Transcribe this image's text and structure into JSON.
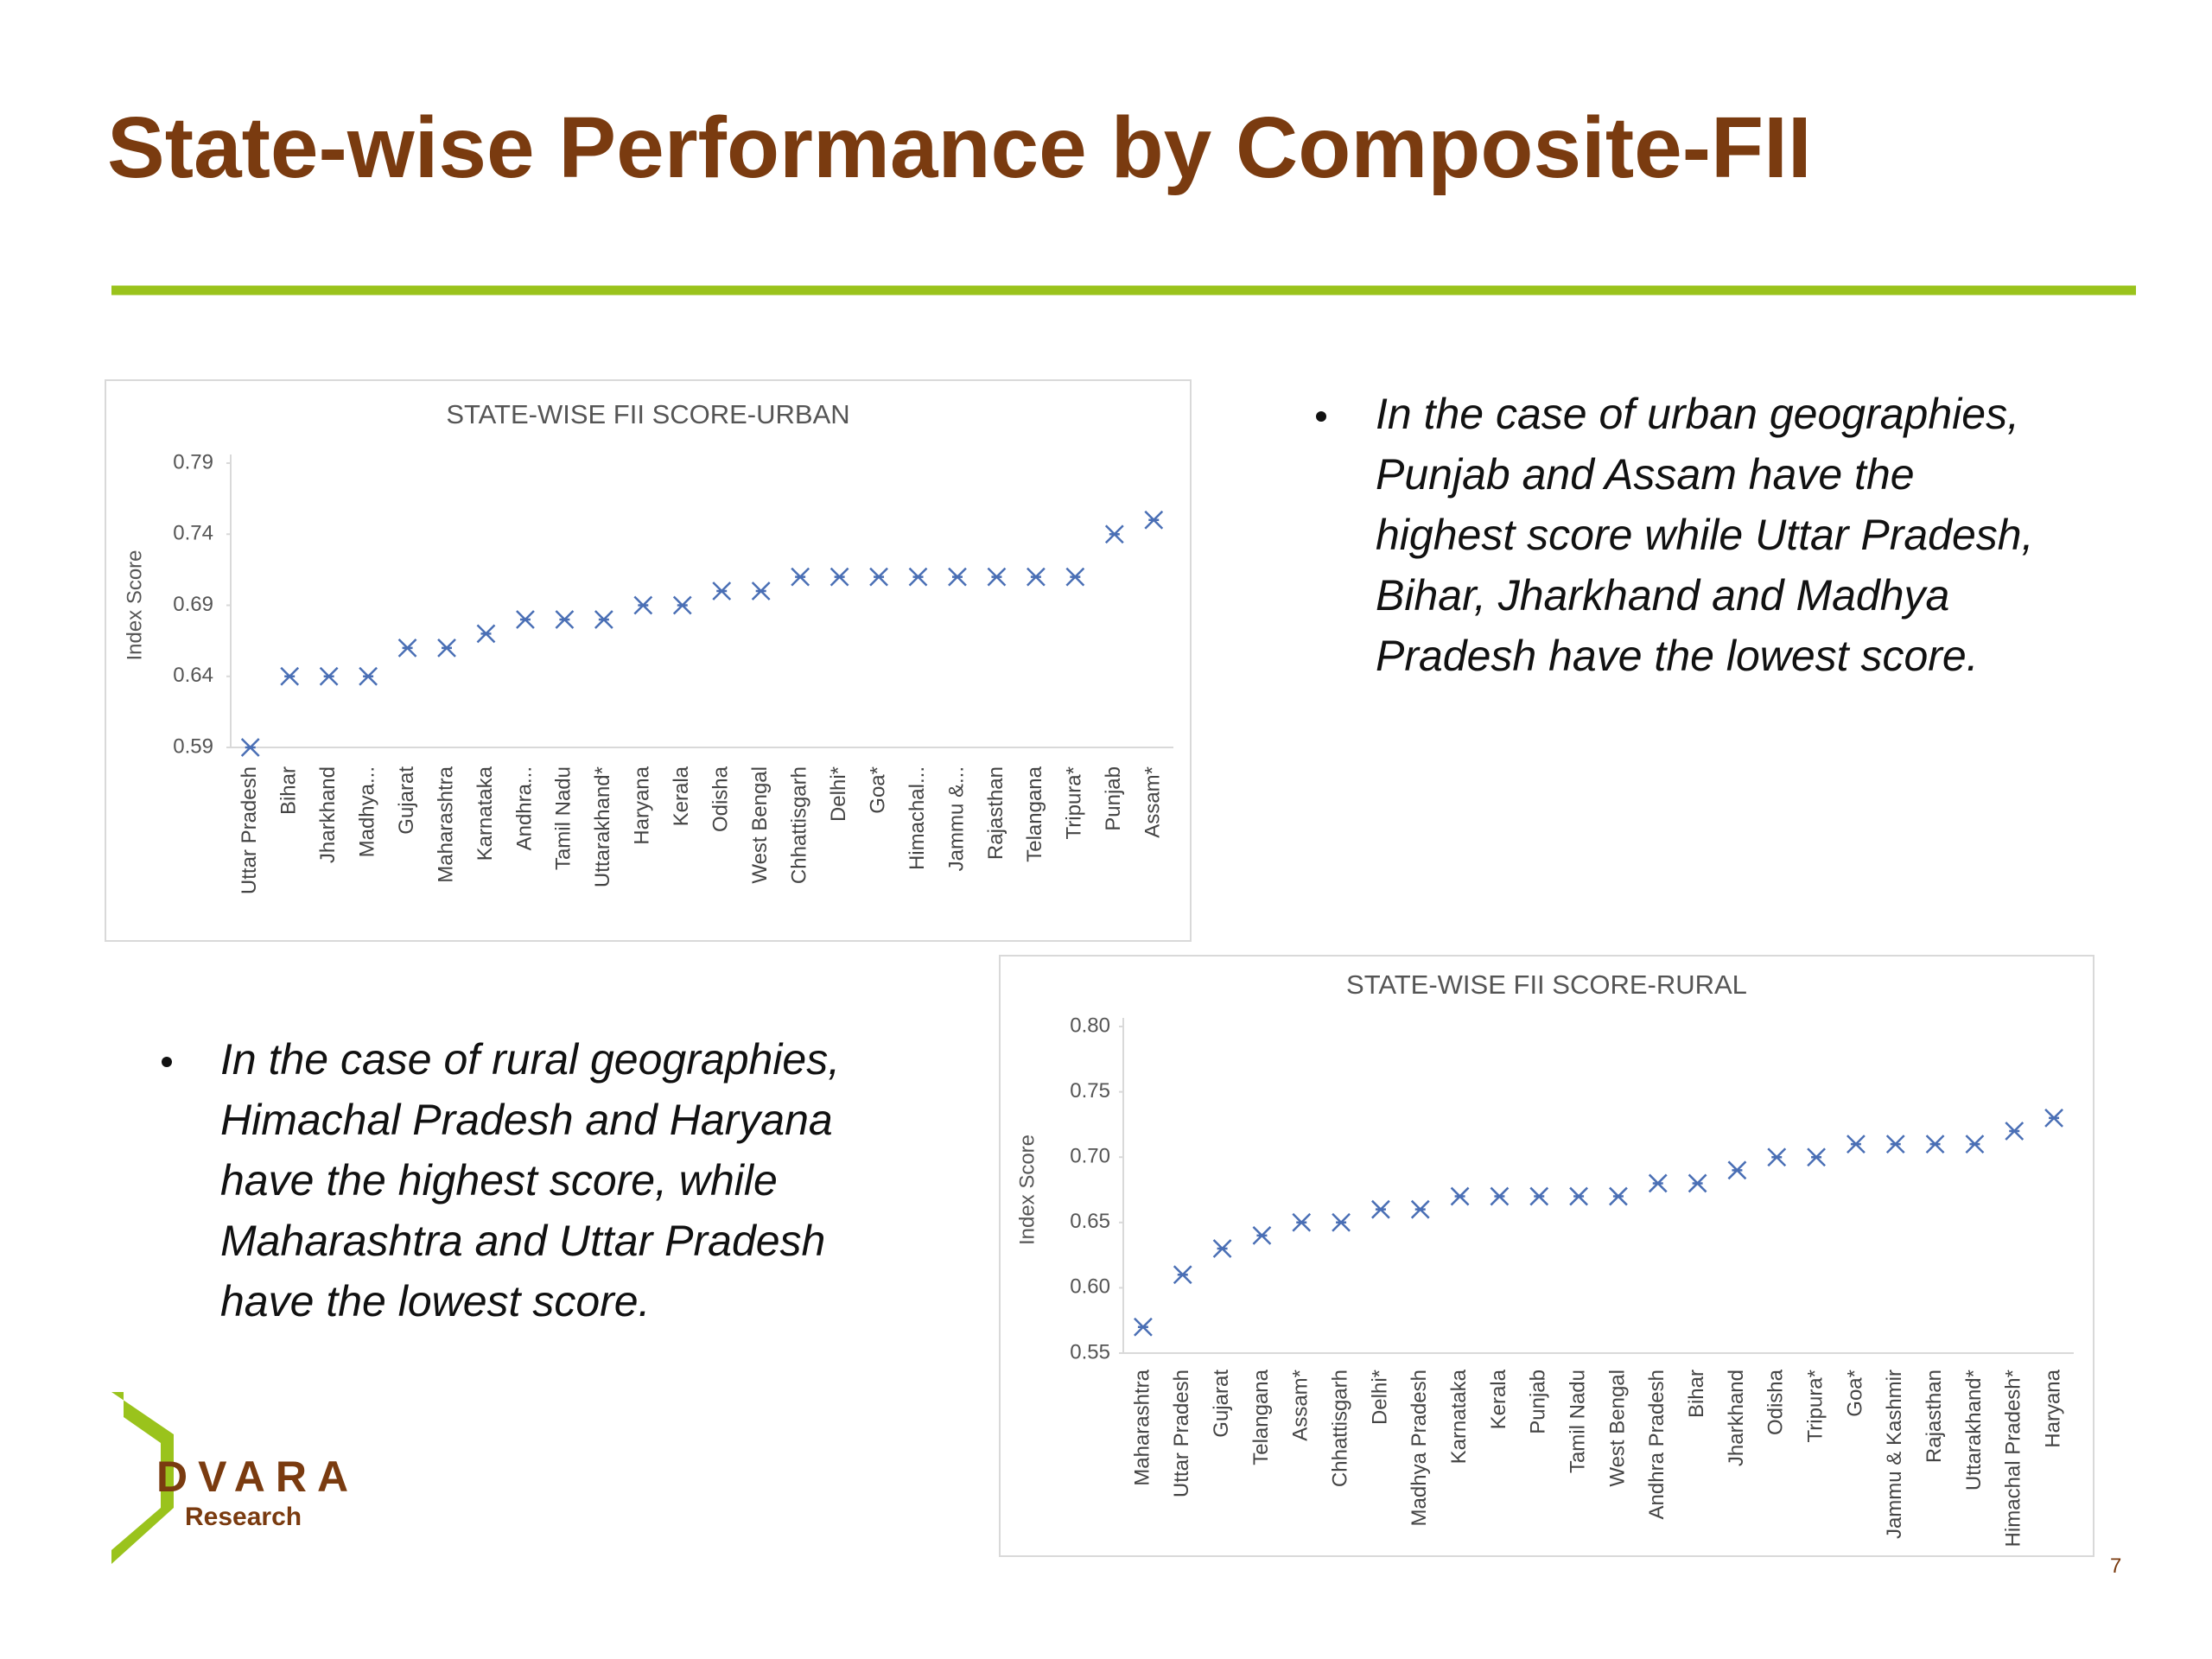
{
  "slide": {
    "title": "State-wise Performance by Composite-FII",
    "bullets": [
      [
        "In the case of urban geographies,",
        "Punjab and Assam have the",
        "highest score while Uttar Pradesh,",
        "Bihar, Jharkhand and Madhya",
        "Pradesh have the lowest score."
      ],
      [
        "In the case of rural geographies,",
        "Himachal Pradesh and Haryana",
        "have the highest score, while",
        "Maharashtra and Uttar Pradesh",
        "have the lowest score."
      ]
    ],
    "logo": {
      "name": "DVARA",
      "sub": "Research"
    },
    "page_number": "7"
  },
  "chart_data": [
    {
      "type": "scatter",
      "title": "STATE-WISE FII SCORE-URBAN",
      "y_label": "Index Score",
      "color": "#4a6fb5",
      "categories": [
        "Uttar Pradesh",
        "Bihar",
        "Jharkhand",
        "Madhya...",
        "Gujarat",
        "Maharashtra",
        "Karnataka",
        "Andhra...",
        "Tamil Nadu",
        "Uttarakhand*",
        "Haryana",
        "Kerala",
        "Odisha",
        "West Bengal",
        "Chhattisgarh",
        "Delhi*",
        "Goa*",
        "Himachal...",
        "Jammu &...",
        "Rajasthan",
        "Telangana",
        "Tripura*",
        "Punjab",
        "Assam*"
      ],
      "values": [
        0.59,
        0.64,
        0.64,
        0.64,
        0.66,
        0.66,
        0.67,
        0.68,
        0.68,
        0.68,
        0.69,
        0.69,
        0.7,
        0.7,
        0.71,
        0.71,
        0.71,
        0.71,
        0.71,
        0.71,
        0.71,
        0.71,
        0.74,
        0.75
      ],
      "ylim": [
        0.59,
        0.79
      ],
      "yticks": [
        0.59,
        0.64,
        0.69,
        0.74,
        0.79
      ]
    },
    {
      "type": "scatter",
      "title": "STATE-WISE FII SCORE-RURAL",
      "y_label": "Index Score",
      "color": "#4a6fb5",
      "categories": [
        "Maharashtra",
        "Uttar Pradesh",
        "Gujarat",
        "Telangana",
        "Assam*",
        "Chhattisgarh",
        "Delhi*",
        "Madhya Pradesh",
        "Karnataka",
        "Kerala",
        "Punjab",
        "Tamil Nadu",
        "West Bengal",
        "Andhra Pradesh",
        "Bihar",
        "Jharkhand",
        "Odisha",
        "Tripura*",
        "Goa*",
        "Jammu & Kashmir",
        "Rajasthan",
        "Uttarakhand*",
        "Himachal Pradesh*",
        "Haryana"
      ],
      "values": [
        0.57,
        0.61,
        0.63,
        0.64,
        0.65,
        0.65,
        0.66,
        0.66,
        0.67,
        0.67,
        0.67,
        0.67,
        0.67,
        0.68,
        0.68,
        0.69,
        0.7,
        0.7,
        0.71,
        0.71,
        0.71,
        0.71,
        0.72,
        0.73
      ],
      "ylim": [
        0.55,
        0.8
      ],
      "yticks": [
        0.55,
        {
          "value": 0.6,
          "label": "0.60"
        },
        0.65,
        {
          "value": 0.7,
          "label": "0.70"
        },
        0.75,
        {
          "value": 0.8,
          "label": "0.80"
        }
      ]
    }
  ]
}
